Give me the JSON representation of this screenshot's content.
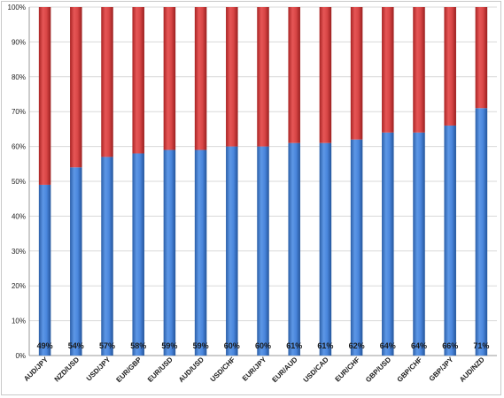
{
  "chart_data": {
    "type": "bar",
    "stacked": true,
    "percent_stacked": true,
    "categories": [
      "AUD/JPY",
      "NZD/USD",
      "USD/JPY",
      "EUR/GBP",
      "EUR/USD",
      "AUD/USD",
      "USD/CHF",
      "EUR/JPY",
      "EUR/AUD",
      "USD/CAD",
      "EUR/CHF",
      "GBP/USD",
      "GBP/CHF",
      "GBP/JPY",
      "AUD/NZD"
    ],
    "series": [
      {
        "values": [
          49,
          54,
          57,
          58,
          59,
          59,
          60,
          60,
          61,
          61,
          62,
          64,
          64,
          66,
          71
        ],
        "color": "#3f7bd1"
      },
      {
        "values": [
          51,
          46,
          43,
          42,
          41,
          41,
          40,
          40,
          39,
          39,
          38,
          36,
          36,
          34,
          29
        ],
        "color": "#d23a3a"
      }
    ],
    "data_labels": [
      "49%",
      "54%",
      "57%",
      "58%",
      "59%",
      "59%",
      "60%",
      "60%",
      "61%",
      "61%",
      "62%",
      "64%",
      "64%",
      "66%",
      "71%"
    ],
    "y_ticks": [
      "0%",
      "10%",
      "20%",
      "30%",
      "40%",
      "50%",
      "60%",
      "70%",
      "80%",
      "90%",
      "100%"
    ],
    "ylim": [
      0,
      100
    ],
    "grid": true,
    "legend": "none",
    "title": "",
    "xlabel": "",
    "ylabel": ""
  }
}
